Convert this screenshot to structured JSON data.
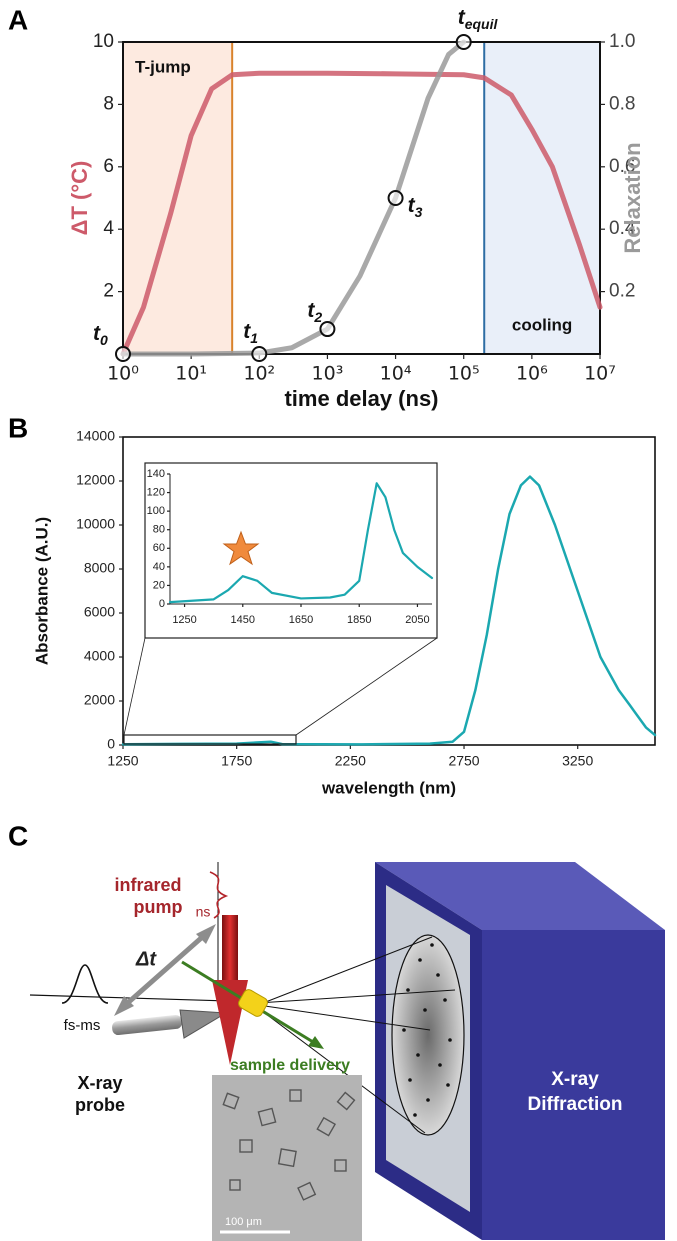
{
  "panel_labels": [
    "A",
    "B",
    "C"
  ],
  "chart_data": [
    {
      "type": "line",
      "xscale": "log",
      "xlabel": "time delay (ns)",
      "ylabel": "ΔT (°C)",
      "y2label": "Relaxation",
      "xlim": [
        1,
        10000000
      ],
      "xticks": [
        {
          "value": 1,
          "label": "10⁰"
        },
        {
          "value": 10,
          "label": "10¹"
        },
        {
          "value": 100,
          "label": "10²"
        },
        {
          "value": 1000,
          "label": "10³"
        },
        {
          "value": 10000,
          "label": "10⁴"
        },
        {
          "value": 100000,
          "label": "10⁵"
        },
        {
          "value": 1000000,
          "label": "10⁶"
        },
        {
          "value": 10000000,
          "label": "10⁷"
        }
      ],
      "ylim": [
        0,
        10
      ],
      "yticks": [
        2,
        4,
        6,
        8,
        10
      ],
      "y2lim": [
        0,
        1
      ],
      "y2ticks": [
        0.2,
        0.4,
        0.6,
        0.8,
        {
          "value": 1,
          "label": "1.0"
        }
      ],
      "series": [
        {
          "color": "#cd5a6a",
          "x": [
            1,
            2,
            5,
            10,
            20,
            40,
            100,
            1000,
            10000,
            100000,
            200000,
            500000,
            1000000,
            2000000,
            5000000,
            10000000
          ],
          "values": [
            0,
            1.5,
            4.5,
            7,
            8.5,
            8.95,
            9,
            9,
            8.98,
            8.95,
            8.85,
            8.3,
            7.2,
            6,
            3.5,
            1.5
          ]
        },
        {
          "color": "#9a9a9a",
          "axis": "y2",
          "x": [
            1,
            10,
            100,
            300,
            1000,
            3000,
            10000,
            30000,
            60000,
            100000
          ],
          "values": [
            0,
            0,
            0.003,
            0.02,
            0.08,
            0.25,
            0.5,
            0.82,
            0.96,
            1
          ]
        }
      ],
      "points": [
        {
          "x": 1,
          "y": 0,
          "label": "t",
          "sub": "0"
        },
        {
          "x": 100,
          "y": 0,
          "label": "t",
          "sub": "1"
        },
        {
          "x": 1000,
          "y": 0.08,
          "label": "t",
          "sub": "2"
        },
        {
          "x": 10000,
          "y": 0.5,
          "label": "t",
          "sub": "3"
        },
        {
          "x": 100000,
          "y": 1,
          "label": "t",
          "sub": "equil"
        }
      ],
      "regions": [
        {
          "label": "T-jump",
          "x": [
            1,
            40
          ],
          "color": "#d9822b",
          "fill": "#fdeae0"
        },
        {
          "label": "cooling",
          "x": [
            200000,
            10000000
          ],
          "color": "#2e6da4",
          "fill": "#e9eff9"
        }
      ]
    },
    {
      "type": "line",
      "xlabel": "wavelength (nm)",
      "ylabel": "Absorbance (A.U.)",
      "xlim": [
        1250,
        3590
      ],
      "xticks": [
        1250,
        1750,
        2250,
        2750,
        3250
      ],
      "ylim": [
        0,
        14000
      ],
      "yticks": [
        0,
        2000,
        4000,
        6000,
        8000,
        10000,
        12000,
        14000
      ],
      "series": [
        {
          "color": "#1ba8b0",
          "x": [
            1250,
            1500,
            1750,
            1900,
            1950,
            2300,
            2600,
            2700,
            2750,
            2800,
            2850,
            2900,
            2950,
            3000,
            3040,
            3080,
            3150,
            3250,
            3350,
            3430,
            3480,
            3550,
            3590
          ],
          "values": [
            30,
            50,
            60,
            150,
            40,
            30,
            60,
            150,
            600,
            2500,
            5000,
            8000,
            10500,
            11800,
            12200,
            11800,
            10000,
            7000,
            4000,
            2500,
            1800,
            800,
            450
          ]
        }
      ]
    },
    {
      "type": "line",
      "xlim": [
        1200,
        2100
      ],
      "xticks": [
        1250,
        1450,
        1650,
        1850,
        2050
      ],
      "ylim": [
        0,
        140
      ],
      "yticks": [
        0,
        20,
        40,
        60,
        80,
        100,
        120,
        140
      ],
      "series": [
        {
          "color": "#1ba8b0",
          "x": [
            1200,
            1350,
            1400,
            1450,
            1500,
            1550,
            1650,
            1750,
            1800,
            1850,
            1880,
            1910,
            1940,
            1970,
            2000,
            2050,
            2100
          ],
          "values": [
            2,
            5,
            15,
            30,
            25,
            12,
            6,
            7,
            10,
            25,
            80,
            130,
            115,
            80,
            55,
            40,
            28
          ]
        }
      ]
    }
  ],
  "diagram": {
    "pump": [
      "infrared",
      "pump"
    ],
    "pulse_ir": "ns",
    "delay": "Δt",
    "pulse_xray": "fs-ms",
    "probe": [
      "X-ray",
      "probe"
    ],
    "sample": "sample delivery",
    "scale_bar": "100 μm",
    "detector": [
      "X-ray",
      "Diffraction"
    ]
  }
}
